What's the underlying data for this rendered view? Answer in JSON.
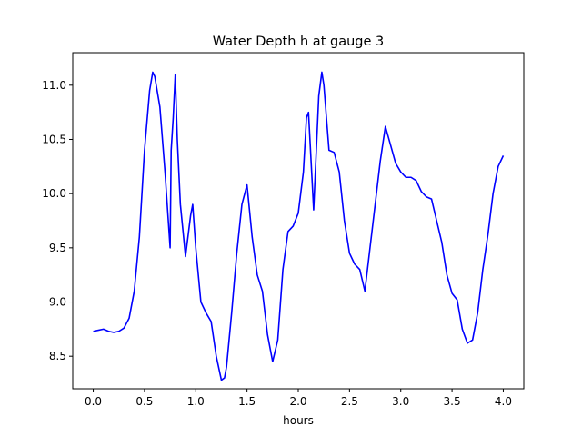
{
  "chart_data": {
    "type": "line",
    "title": "Water Depth h at gauge 3",
    "xlabel": "hours",
    "ylabel": "",
    "xlim": [
      -0.2,
      4.2
    ],
    "ylim": [
      8.2,
      11.3
    ],
    "xticks": [
      0.0,
      0.5,
      1.0,
      1.5,
      2.0,
      2.5,
      3.0,
      3.5,
      4.0
    ],
    "xtick_labels": [
      "0.0",
      "0.5",
      "1.0",
      "1.5",
      "2.0",
      "2.5",
      "3.0",
      "3.5",
      "4.0"
    ],
    "yticks": [
      8.5,
      9.0,
      9.5,
      10.0,
      10.5,
      11.0
    ],
    "ytick_labels": [
      "8.5",
      "9.0",
      "9.5",
      "10.0",
      "10.5",
      "11.0"
    ],
    "grid": false,
    "series": [
      {
        "color": "#0000ff",
        "x": [
          0.0,
          0.05,
          0.1,
          0.15,
          0.2,
          0.25,
          0.3,
          0.35,
          0.4,
          0.45,
          0.5,
          0.55,
          0.58,
          0.6,
          0.65,
          0.7,
          0.75,
          0.76,
          0.78,
          0.8,
          0.82,
          0.85,
          0.9,
          0.95,
          0.97,
          1.0,
          1.05,
          1.1,
          1.15,
          1.2,
          1.25,
          1.28,
          1.3,
          1.35,
          1.4,
          1.45,
          1.5,
          1.55,
          1.6,
          1.65,
          1.7,
          1.75,
          1.8,
          1.85,
          1.9,
          1.95,
          2.0,
          2.05,
          2.08,
          2.1,
          2.15,
          2.2,
          2.23,
          2.25,
          2.3,
          2.35,
          2.4,
          2.45,
          2.5,
          2.55,
          2.6,
          2.65,
          2.7,
          2.75,
          2.8,
          2.85,
          2.9,
          2.95,
          3.0,
          3.05,
          3.1,
          3.15,
          3.2,
          3.25,
          3.3,
          3.35,
          3.4,
          3.45,
          3.5,
          3.55,
          3.6,
          3.65,
          3.7,
          3.75,
          3.8,
          3.85,
          3.9,
          3.95,
          4.0
        ],
        "y": [
          8.73,
          8.74,
          8.75,
          8.73,
          8.72,
          8.73,
          8.76,
          8.85,
          9.1,
          9.6,
          10.4,
          10.95,
          11.12,
          11.08,
          10.8,
          10.2,
          9.5,
          10.4,
          10.7,
          11.1,
          10.5,
          9.9,
          9.42,
          9.8,
          9.9,
          9.5,
          9.0,
          8.9,
          8.82,
          8.5,
          8.28,
          8.3,
          8.4,
          8.9,
          9.45,
          9.9,
          10.08,
          9.6,
          9.25,
          9.1,
          8.7,
          8.45,
          8.65,
          9.3,
          9.65,
          9.7,
          9.82,
          10.2,
          10.7,
          10.75,
          9.85,
          10.9,
          11.12,
          11.0,
          10.4,
          10.38,
          10.2,
          9.75,
          9.45,
          9.35,
          9.3,
          9.1,
          9.5,
          9.9,
          10.3,
          10.62,
          10.45,
          10.28,
          10.2,
          10.15,
          10.15,
          10.12,
          10.02,
          9.97,
          9.95,
          9.75,
          9.55,
          9.25,
          9.08,
          9.02,
          8.75,
          8.62,
          8.65,
          8.9,
          9.3,
          9.62,
          10.0,
          10.25,
          10.35
        ]
      }
    ]
  }
}
